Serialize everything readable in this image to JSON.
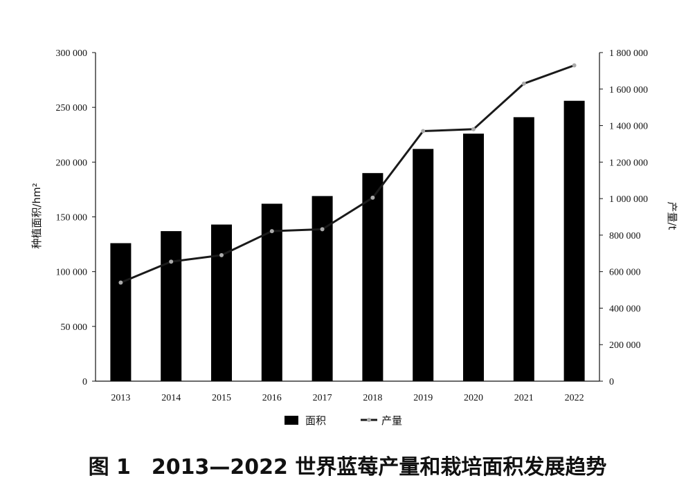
{
  "caption": "图 1　2013—2022 世界蓝莓产量和栽培面积发展趋势",
  "chart_data": {
    "type": "bar",
    "categories": [
      "2013",
      "2014",
      "2015",
      "2016",
      "2017",
      "2018",
      "2019",
      "2020",
      "2021",
      "2022"
    ],
    "series": [
      {
        "name": "面积",
        "type": "bar",
        "axis": "left",
        "color": "#000000",
        "values": [
          126000,
          137000,
          143000,
          162000,
          169000,
          190000,
          212000,
          226000,
          241000,
          256000
        ]
      },
      {
        "name": "产量",
        "type": "line",
        "axis": "right",
        "color": "#1a1a1a",
        "marker_color": "#aaaaaa",
        "values": [
          540000,
          655000,
          690000,
          822000,
          832000,
          1005000,
          1370000,
          1380000,
          1630000,
          1730000
        ]
      }
    ],
    "ylabel": "种植面积/hm²",
    "y2label": "产量/t",
    "ylim": [
      0,
      300000
    ],
    "y2lim": [
      0,
      1800000
    ],
    "yticks": [
      "0",
      "50 000",
      "100 000",
      "150 000",
      "200 000",
      "250 000",
      "300 000"
    ],
    "y2ticks": [
      "0",
      "200 000",
      "400 000",
      "600 000",
      "800 000",
      "1 000 000",
      "1 200 000",
      "1 400 000",
      "1 600 000",
      "1 800 000"
    ],
    "grid": false,
    "legend_position": "bottom-center"
  }
}
